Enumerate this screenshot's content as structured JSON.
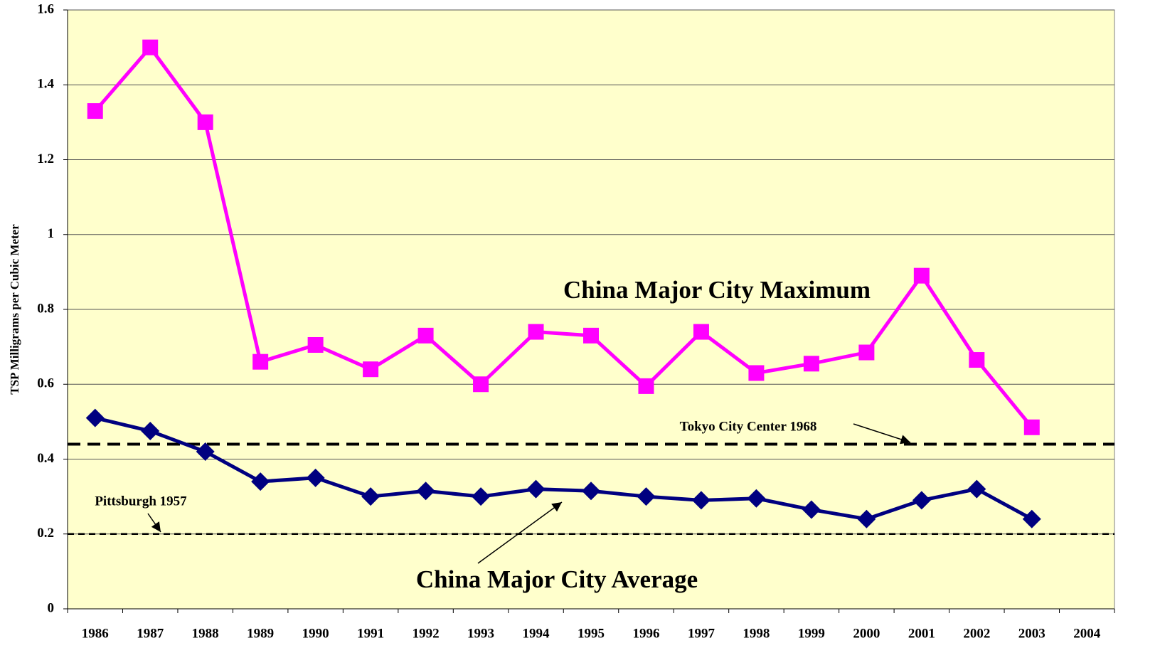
{
  "chart_data": {
    "type": "line",
    "y_axis_label": "TSP Milligrams per Cubic Meter",
    "categories": [
      "1986",
      "1987",
      "1988",
      "1989",
      "1990",
      "1991",
      "1992",
      "1993",
      "1994",
      "1995",
      "1996",
      "1997",
      "1998",
      "1999",
      "2000",
      "2001",
      "2002",
      "2003",
      "2004"
    ],
    "series": [
      {
        "name": "China Major City Maximum",
        "color": "#ff00ff",
        "marker": "square",
        "values": [
          1.33,
          1.5,
          1.3,
          0.66,
          0.705,
          0.64,
          0.73,
          0.6,
          0.74,
          0.73,
          0.595,
          0.74,
          0.63,
          0.655,
          0.685,
          0.89,
          0.665,
          0.485,
          null
        ]
      },
      {
        "name": "China Major City Average",
        "color": "#000080",
        "marker": "diamond",
        "values": [
          0.51,
          0.475,
          0.42,
          0.34,
          0.35,
          0.3,
          0.315,
          0.3,
          0.32,
          0.315,
          0.3,
          0.29,
          0.295,
          0.265,
          0.24,
          0.29,
          0.32,
          0.24,
          null
        ]
      }
    ],
    "reference_lines": [
      {
        "label": "Tokyo City Center 1968",
        "value": 0.44
      },
      {
        "label": "Pittsburgh 1957",
        "value": 0.2
      }
    ],
    "ylim": [
      0,
      1.6
    ],
    "yticks": [
      0,
      0.2,
      0.4,
      0.6,
      0.8,
      1,
      1.2,
      1.4,
      1.6
    ],
    "grid": true,
    "background": "#ffffcc"
  }
}
